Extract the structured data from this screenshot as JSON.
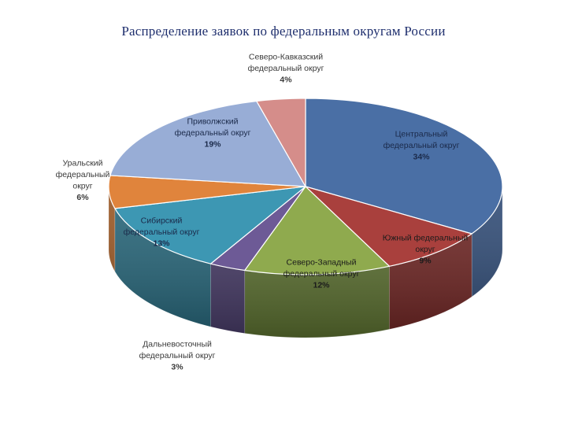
{
  "chart_data": {
    "type": "pie",
    "title": "Распределение заявок по федеральным округам России",
    "unit": "%",
    "slices": [
      {
        "name": "Центральный федеральный округ",
        "label_lines": [
          "Центральный",
          "федеральный округ"
        ],
        "value": 34,
        "value_label": "34%",
        "color": "#4a6fa5",
        "side_color": "#2e4a75"
      },
      {
        "name": "Южный федеральный округ",
        "label_lines": [
          "Южный федеральный",
          "округ"
        ],
        "value": 9,
        "value_label": "9%",
        "color": "#a9403d",
        "side_color": "#6e2422"
      },
      {
        "name": "Северо-Западный федеральный округ",
        "label_lines": [
          "Северо-Западный",
          "федеральный округ"
        ],
        "value": 12,
        "value_label": "12%",
        "color": "#8faa4e",
        "side_color": "#5b7030"
      },
      {
        "name": "Дальневосточный федеральный округ",
        "label_lines": [
          "Дальневосточный",
          "федеральный округ"
        ],
        "value": 3,
        "value_label": "3%",
        "color": "#6d5a96",
        "side_color": "#463a66"
      },
      {
        "name": "Сибирский федеральный округ",
        "label_lines": [
          "Сибирский",
          "федеральный округ"
        ],
        "value": 13,
        "value_label": "13%",
        "color": "#3d97b3",
        "side_color": "#246478"
      },
      {
        "name": "Уральский федеральный округ",
        "label_lines": [
          "Уральский",
          "федеральный",
          "округ"
        ],
        "value": 6,
        "value_label": "6%",
        "color": "#e0843c",
        "side_color": "#9a5520"
      },
      {
        "name": "Приволжский федеральный округ",
        "label_lines": [
          "Приволжский",
          "федеральный округ"
        ],
        "value": 19,
        "value_label": "19%",
        "color": "#98add6",
        "side_color": "#62779e"
      },
      {
        "name": "Северо-Кавказский федеральный округ",
        "label_lines": [
          "Северо-Кавказский",
          "федеральный округ"
        ],
        "value": 4,
        "value_label": "4%",
        "color": "#d58d8a",
        "side_color": "#94605e"
      }
    ]
  }
}
